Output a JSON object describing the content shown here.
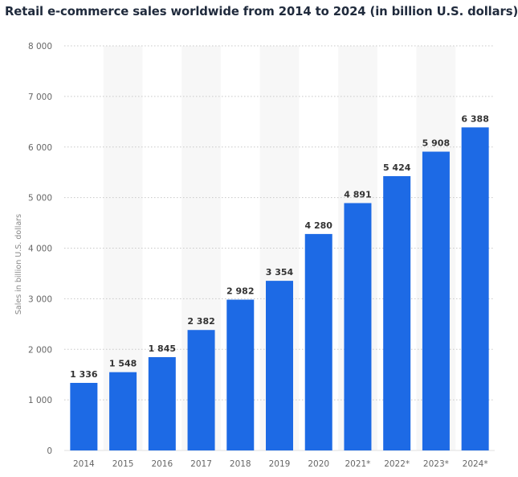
{
  "header": {
    "title": "Retail e-commerce sales worldwide from 2014 to 2024 (in billion U.S. dollars)"
  },
  "colors": {
    "bar": "#1d6ae5",
    "band": "#f7f7f7",
    "grid": "#c8c8c8",
    "axis": "#666666"
  },
  "chart_data": {
    "type": "bar",
    "title": "Retail e-commerce sales worldwide from 2014 to 2024 (in billion U.S. dollars)",
    "xlabel": "",
    "ylabel": "Sales in billion U.S. dollars",
    "categories": [
      "2014",
      "2015",
      "2016",
      "2017",
      "2018",
      "2019",
      "2020",
      "2021*",
      "2022*",
      "2023*",
      "2024*"
    ],
    "values": [
      1336,
      1548,
      1845,
      2382,
      2982,
      3354,
      4280,
      4891,
      5424,
      5908,
      6388
    ],
    "value_labels": [
      "1 336",
      "1 548",
      "1 845",
      "2 382",
      "2 982",
      "3 354",
      "4 280",
      "4 891",
      "5 424",
      "5 908",
      "6 388"
    ],
    "ylim": [
      0,
      8000
    ],
    "yticks": [
      0,
      1000,
      2000,
      3000,
      4000,
      5000,
      6000,
      7000,
      8000
    ],
    "ytick_labels": [
      "0",
      "1 000",
      "2 000",
      "3 000",
      "4 000",
      "5 000",
      "6 000",
      "7 000",
      "8 000"
    ],
    "grid": true,
    "legend": "none"
  }
}
